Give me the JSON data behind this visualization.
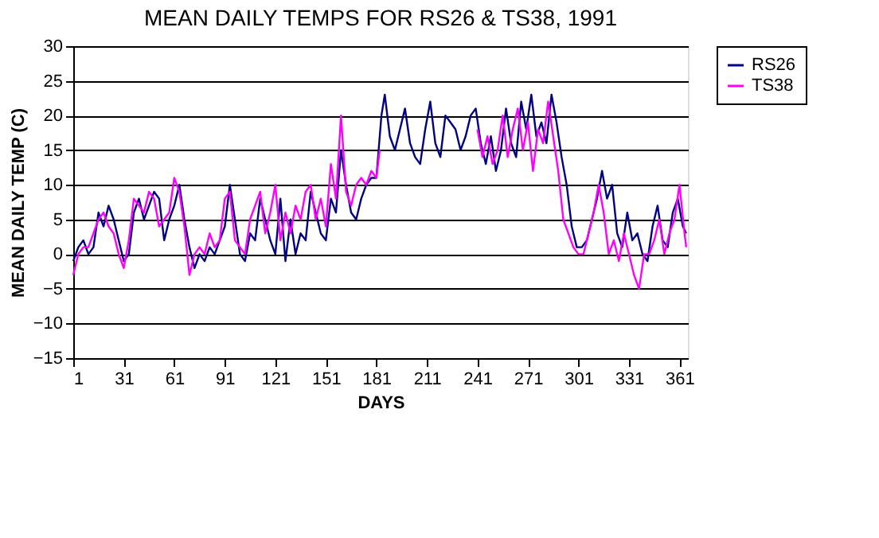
{
  "chart_data": {
    "type": "line",
    "title": "MEAN DAILY TEMPS FOR RS26 & TS38, 1991",
    "xlabel": "DAYS",
    "ylabel": "MEAN DAILY TEMP (C)",
    "xlim": [
      1,
      366
    ],
    "xticks": [
      1,
      31,
      61,
      91,
      121,
      151,
      181,
      211,
      241,
      271,
      301,
      331,
      361
    ],
    "ylim": [
      -15,
      30
    ],
    "yticks": [
      -15,
      -10,
      -5,
      0,
      5,
      10,
      15,
      20,
      25,
      30
    ],
    "grid": "y",
    "legend": "right",
    "marker": "none",
    "line_style": "solid",
    "series": [
      {
        "name": "RS26",
        "color": "#000080",
        "x": [
          1,
          4,
          7,
          10,
          13,
          16,
          19,
          22,
          25,
          28,
          31,
          34,
          37,
          40,
          43,
          46,
          49,
          52,
          55,
          58,
          61,
          64,
          67,
          70,
          73,
          76,
          79,
          82,
          85,
          88,
          91,
          94,
          97,
          100,
          103,
          106,
          109,
          112,
          115,
          118,
          121,
          124,
          127,
          130,
          133,
          136,
          139,
          142,
          145,
          148,
          151,
          154,
          157,
          160,
          163,
          166,
          169,
          172,
          175,
          178,
          181,
          184,
          186,
          189,
          192,
          195,
          198,
          201,
          204,
          207,
          210,
          213,
          216,
          219,
          222,
          225,
          228,
          231,
          234,
          237,
          240,
          243,
          246,
          249,
          252,
          255,
          258,
          261,
          264,
          267,
          270,
          273,
          276,
          279,
          282,
          285,
          288,
          291,
          294,
          297,
          300,
          303,
          306,
          309,
          312,
          315,
          318,
          321,
          324,
          327,
          330,
          333,
          336,
          339,
          342,
          345,
          348,
          351,
          354,
          357,
          360,
          363,
          365
        ],
        "values": [
          -1,
          1,
          2,
          0,
          1,
          6,
          4,
          7,
          5,
          2,
          -1,
          0,
          6,
          8,
          5,
          7,
          9,
          8,
          2,
          5,
          7,
          10,
          5,
          1,
          -2,
          0,
          -1,
          1,
          0,
          2,
          4,
          10,
          5,
          0,
          -1,
          3,
          2,
          8,
          5,
          2,
          0,
          8,
          -1,
          5,
          0,
          3,
          2,
          9,
          6,
          3,
          2,
          8,
          6,
          15,
          10,
          6,
          5,
          8,
          10,
          11,
          11,
          20,
          23,
          17,
          15,
          18,
          21,
          16,
          14,
          13,
          18,
          22,
          16,
          14,
          20,
          19,
          18,
          15,
          17,
          20,
          21,
          16,
          13,
          17,
          12,
          15,
          21,
          16,
          14,
          22,
          18,
          23,
          17,
          19,
          16,
          23,
          19,
          14,
          10,
          4,
          1,
          1,
          2,
          5,
          8,
          12,
          8,
          10,
          3,
          1,
          6,
          2,
          3,
          0,
          -1,
          4,
          7,
          2,
          1,
          6,
          8,
          4,
          3
        ]
      },
      {
        "name": "TS38",
        "color": "#ff00ff",
        "x": [
          1,
          4,
          7,
          10,
          13,
          16,
          19,
          22,
          25,
          28,
          31,
          34,
          37,
          40,
          43,
          46,
          49,
          52,
          55,
          58,
          61,
          64,
          67,
          70,
          73,
          76,
          79,
          82,
          85,
          88,
          91,
          94,
          97,
          100,
          103,
          106,
          109,
          112,
          115,
          118,
          121,
          124,
          127,
          130,
          133,
          136,
          139,
          142,
          145,
          148,
          151,
          154,
          157,
          160,
          163,
          166,
          169,
          172,
          175,
          178,
          181,
          183,
          186,
          241,
          244,
          247,
          250,
          253,
          256,
          259,
          262,
          265,
          268,
          271,
          274,
          277,
          280,
          283,
          286,
          289,
          292,
          295,
          298,
          301,
          304,
          307,
          310,
          313,
          316,
          319,
          322,
          325,
          328,
          331,
          334,
          337,
          340,
          343,
          346,
          349,
          352,
          355,
          358,
          361,
          364,
          365
        ],
        "values": [
          -3,
          0,
          1,
          1,
          3,
          5,
          6,
          4,
          3,
          0,
          -2,
          2,
          8,
          7,
          6,
          9,
          8,
          4,
          5,
          6,
          11,
          9,
          4,
          -3,
          0,
          1,
          0,
          3,
          1,
          2,
          8,
          9,
          2,
          1,
          0,
          5,
          7,
          9,
          3,
          6,
          10,
          2,
          6,
          3,
          7,
          5,
          9,
          10,
          5,
          8,
          4,
          13,
          8,
          20,
          9,
          7,
          10,
          11,
          10,
          12,
          11,
          15,
          null,
          18,
          14,
          17,
          13,
          15,
          20,
          14,
          18,
          21,
          15,
          19,
          12,
          18,
          16,
          22,
          17,
          12,
          5,
          3,
          1,
          0,
          0,
          3,
          6,
          10,
          6,
          0,
          2,
          -1,
          3,
          0,
          -3,
          -5,
          0,
          0,
          2,
          5,
          0,
          3,
          5,
          10,
          3,
          1
        ]
      }
    ]
  }
}
